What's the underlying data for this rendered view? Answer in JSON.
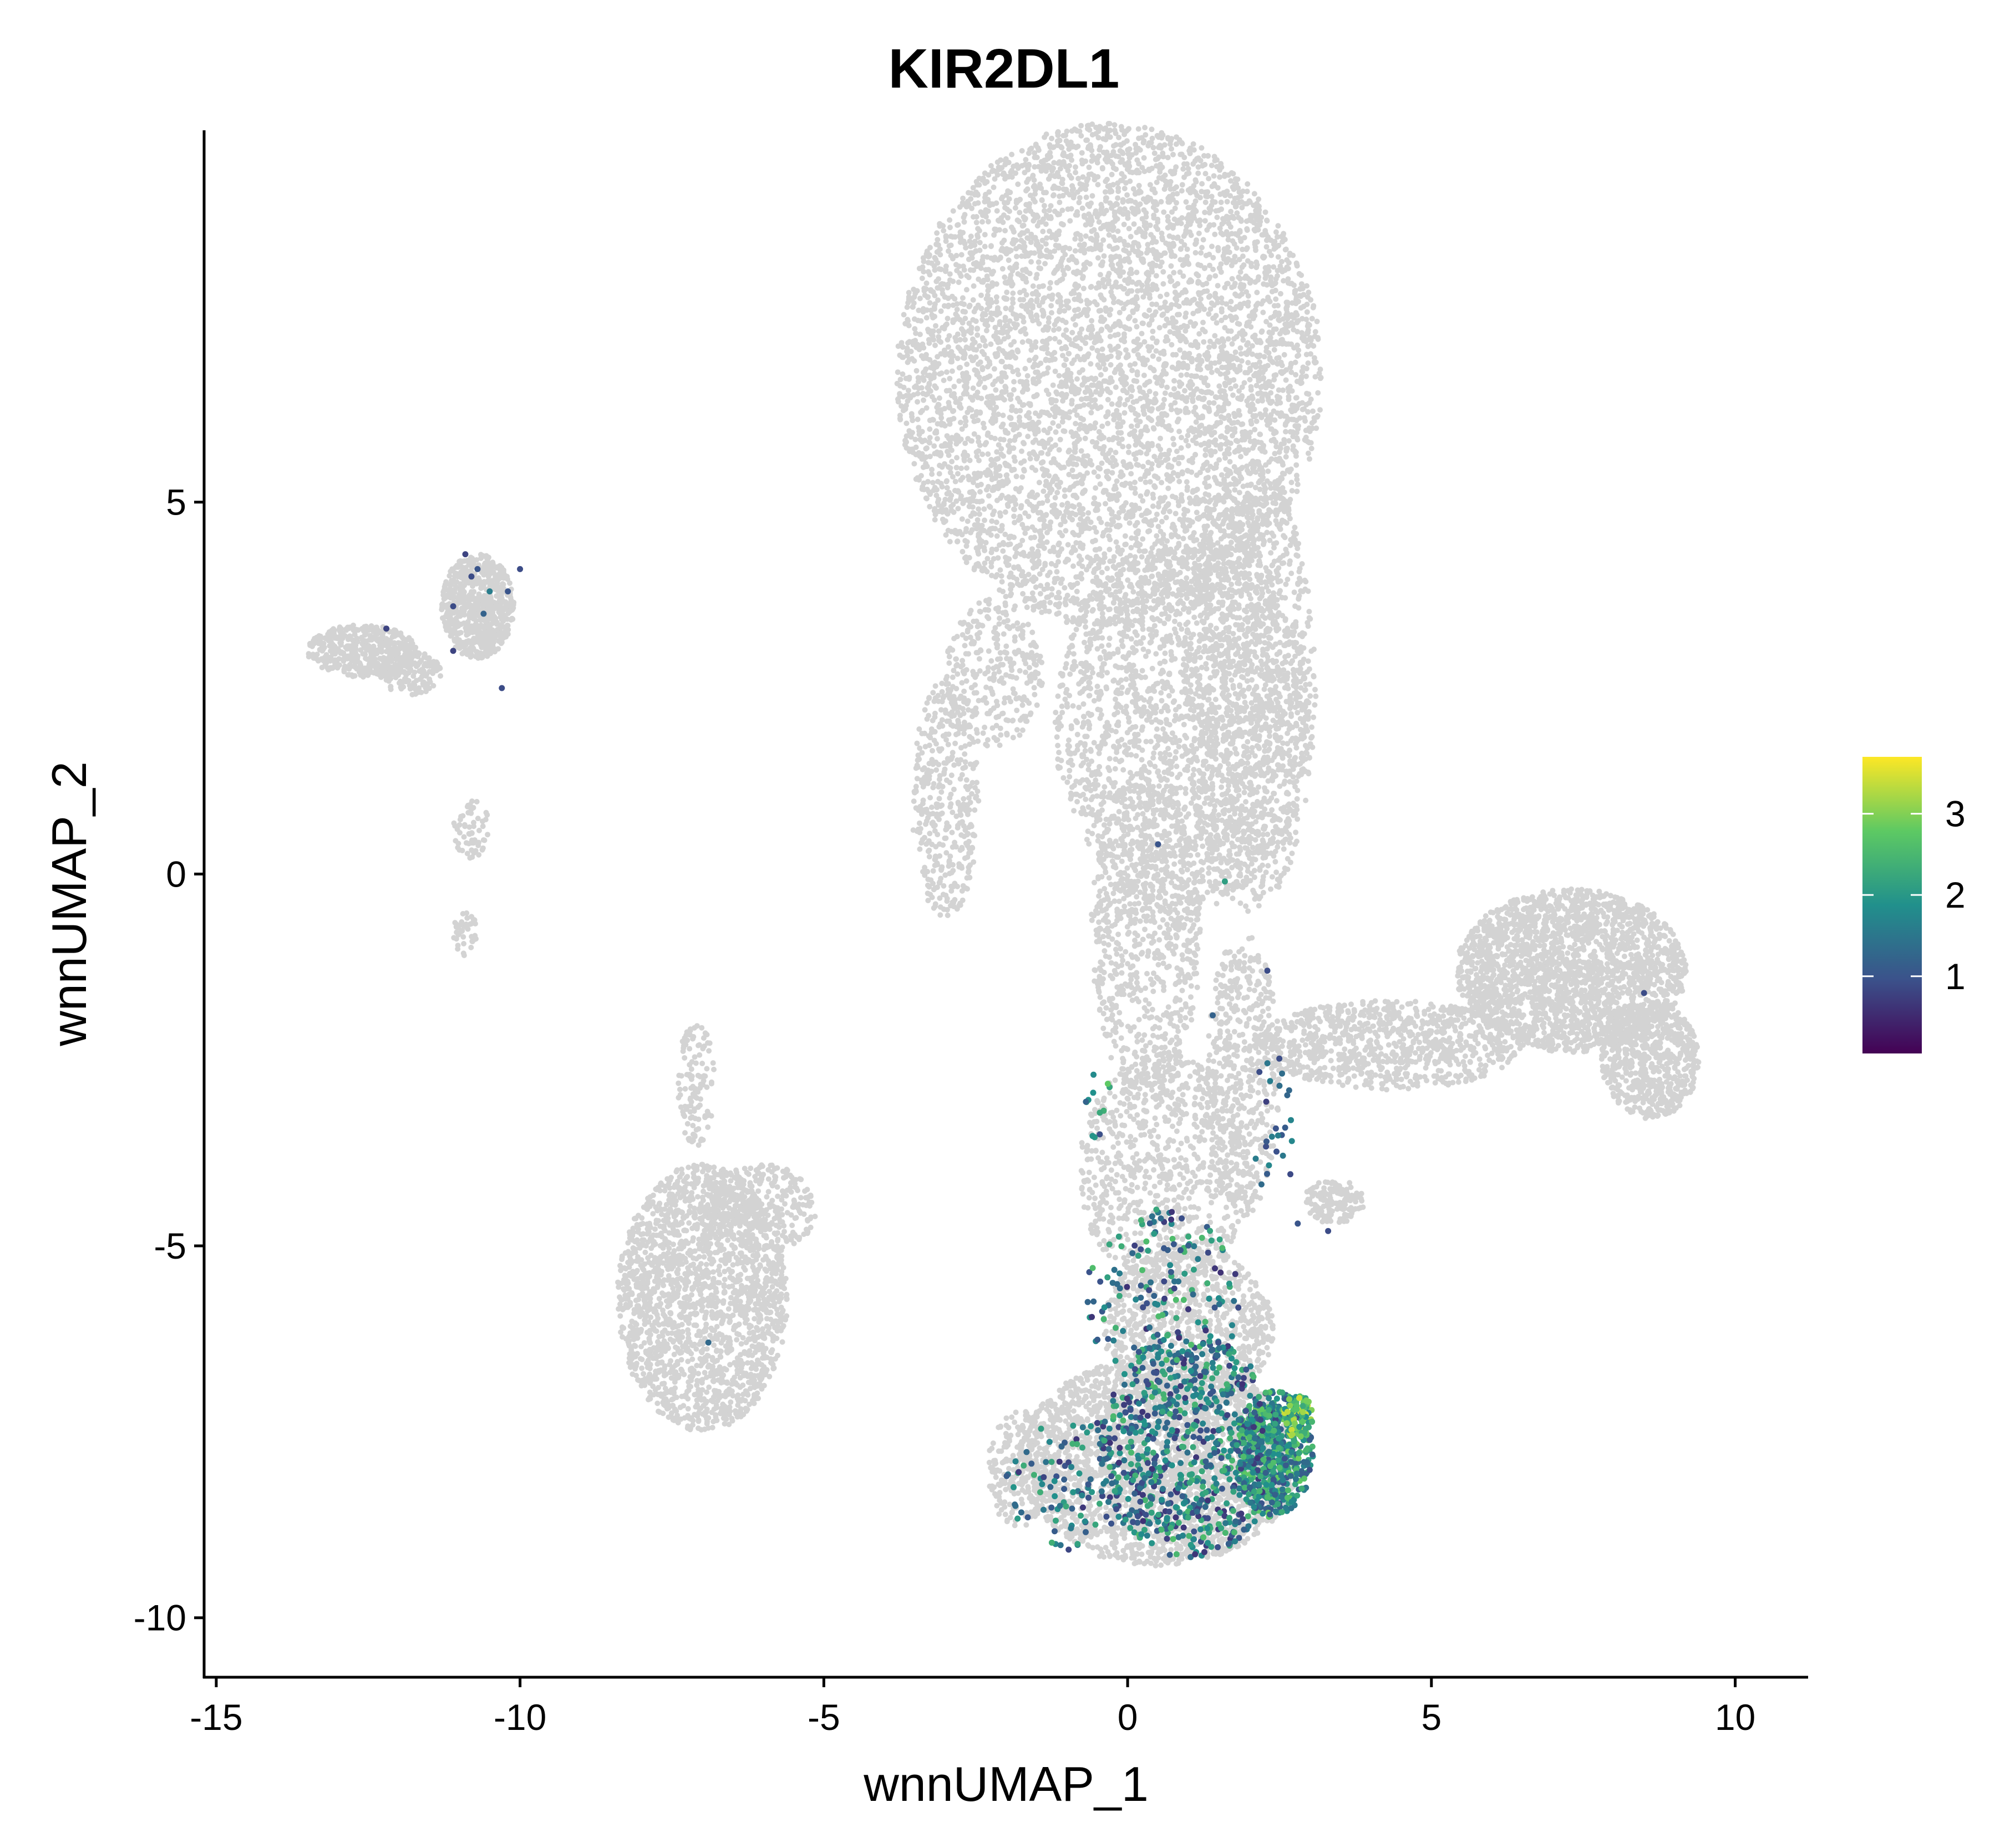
{
  "chart_data": {
    "type": "scatter",
    "title": "KIR2DL1",
    "xlabel": "wnnUMAP_1",
    "ylabel": "wnnUMAP_2",
    "xlim": [
      -15.2,
      11.2
    ],
    "ylim": [
      -10.8,
      10.0
    ],
    "xticks": [
      -15,
      -10,
      -5,
      0,
      5,
      10
    ],
    "yticks": [
      -10,
      -5,
      0,
      5
    ],
    "xtick_labels": [
      "-15",
      "-10",
      "-5",
      "0",
      "5",
      "10"
    ],
    "ytick_labels": [
      "-10",
      "-5",
      "0",
      "5"
    ],
    "grid": false,
    "legend": {
      "type": "colorbar",
      "placement": "right",
      "range": [
        0.05,
        3.7
      ],
      "ticks": [
        1,
        2,
        3
      ],
      "tick_labels": [
        "1",
        "2",
        "3"
      ],
      "colormap": [
        "#440154",
        "#3b528b",
        "#21908c",
        "#5dc963",
        "#fde725"
      ]
    },
    "background_color": "#d3d3d3",
    "background_clusters": [
      {
        "cx": -0.3,
        "cy": 6.7,
        "rx": 3.5,
        "ry": 3.4,
        "n": 5500
      },
      {
        "cx": 0.9,
        "cy": 2.0,
        "rx": 2.1,
        "ry": 2.5,
        "n": 2000
      },
      {
        "cx": 2.0,
        "cy": 2.5,
        "rx": 1.1,
        "ry": 3.0,
        "n": 1200
      },
      {
        "cx": -3.0,
        "cy": 1.0,
        "rx": 0.55,
        "ry": 1.6,
        "n": 400
      },
      {
        "cx": -2.2,
        "cy": 2.7,
        "rx": 0.8,
        "ry": 1.0,
        "n": 300
      },
      {
        "cx": 0.3,
        "cy": -0.8,
        "rx": 0.9,
        "ry": 2.2,
        "n": 800
      },
      {
        "cx": 0.6,
        "cy": -4.0,
        "rx": 1.4,
        "ry": 1.6,
        "n": 800
      },
      {
        "cx": 1.9,
        "cy": -2.7,
        "rx": 0.6,
        "ry": 1.9,
        "n": 500
      },
      {
        "cx": 0.5,
        "cy": -7.9,
        "rx": 2.3,
        "ry": 1.4,
        "n": 2600
      },
      {
        "cx": 1.0,
        "cy": -6.1,
        "rx": 1.4,
        "ry": 1.1,
        "n": 900
      },
      {
        "cx": -1.8,
        "cy": -8.0,
        "rx": 0.5,
        "ry": 0.8,
        "n": 200
      },
      {
        "cx": 7.3,
        "cy": -1.3,
        "rx": 1.9,
        "ry": 1.1,
        "n": 2200
      },
      {
        "cx": 8.6,
        "cy": -2.5,
        "rx": 0.8,
        "ry": 0.8,
        "n": 700
      },
      {
        "cx": 4.3,
        "cy": -2.3,
        "rx": 2.2,
        "ry": 0.6,
        "n": 900
      },
      {
        "cx": 3.4,
        "cy": -4.4,
        "rx": 0.5,
        "ry": 0.3,
        "n": 150
      },
      {
        "cx": -7.0,
        "cy": -5.7,
        "rx": 1.4,
        "ry": 1.8,
        "n": 2000
      },
      {
        "cx": -6.0,
        "cy": -4.5,
        "rx": 0.9,
        "ry": 0.6,
        "n": 300
      },
      {
        "cx": -7.1,
        "cy": -2.8,
        "rx": 0.3,
        "ry": 0.9,
        "n": 120
      },
      {
        "cx": -10.7,
        "cy": 3.6,
        "rx": 0.6,
        "ry": 0.7,
        "n": 700
      },
      {
        "cx": -12.6,
        "cy": 3.0,
        "rx": 0.9,
        "ry": 0.35,
        "n": 450
      },
      {
        "cx": -11.8,
        "cy": 2.7,
        "rx": 0.5,
        "ry": 0.3,
        "n": 150
      },
      {
        "cx": -10.8,
        "cy": 0.6,
        "rx": 0.3,
        "ry": 0.4,
        "n": 60
      },
      {
        "cx": -10.9,
        "cy": -0.8,
        "rx": 0.2,
        "ry": 0.3,
        "n": 40
      }
    ],
    "expressing_points": [
      {
        "x": -12.2,
        "y": 3.3,
        "v": 0.8
      },
      {
        "x": -11.1,
        "y": 3.0,
        "v": 0.8
      },
      {
        "x": -11.1,
        "y": 3.6,
        "v": 0.9
      },
      {
        "x": -10.9,
        "y": 4.3,
        "v": 0.8
      },
      {
        "x": -10.8,
        "y": 4.0,
        "v": 0.9
      },
      {
        "x": -10.7,
        "y": 4.1,
        "v": 1.0
      },
      {
        "x": -10.6,
        "y": 3.5,
        "v": 1.2
      },
      {
        "x": -10.5,
        "y": 3.8,
        "v": 1.6
      },
      {
        "x": -10.3,
        "y": 2.5,
        "v": 0.9
      },
      {
        "x": -10.2,
        "y": 3.8,
        "v": 1.0
      },
      {
        "x": -10.0,
        "y": 4.1,
        "v": 0.9
      },
      {
        "x": -6.9,
        "y": -6.3,
        "v": 1.3
      },
      {
        "x": 0.5,
        "y": 0.4,
        "v": 1.0
      },
      {
        "x": 1.6,
        "y": -0.1,
        "v": 2.1
      },
      {
        "x": 2.3,
        "y": -1.3,
        "v": 0.9
      },
      {
        "x": 1.4,
        "y": -1.9,
        "v": 1.2
      },
      {
        "x": 8.5,
        "y": -1.6,
        "v": 0.9
      },
      {
        "x": 3.3,
        "y": -4.8,
        "v": 0.9
      },
      {
        "x": 2.8,
        "y": -4.7,
        "v": 1.0
      }
    ],
    "expressing_clusters": [
      {
        "cx": 2.4,
        "cy": -7.8,
        "rx": 0.65,
        "ry": 0.85,
        "n": 520,
        "vmin": 0.9,
        "vmax": 2.9
      },
      {
        "cx": 2.8,
        "cy": -7.3,
        "rx": 0.25,
        "ry": 0.3,
        "n": 90,
        "vmin": 1.8,
        "vmax": 3.6
      },
      {
        "cx": 1.0,
        "cy": -7.7,
        "rx": 1.5,
        "ry": 1.5,
        "n": 700,
        "vmin": 0.6,
        "vmax": 2.6
      },
      {
        "cx": 0.6,
        "cy": -5.7,
        "rx": 1.3,
        "ry": 1.2,
        "n": 160,
        "vmin": 0.6,
        "vmax": 2.6
      },
      {
        "cx": -0.8,
        "cy": -8.2,
        "rx": 1.2,
        "ry": 0.9,
        "n": 120,
        "vmin": 0.6,
        "vmax": 2.4
      },
      {
        "cx": 2.4,
        "cy": -3.4,
        "rx": 0.35,
        "ry": 1.1,
        "n": 25,
        "vmin": 0.7,
        "vmax": 1.8
      },
      {
        "cx": -0.5,
        "cy": -3.1,
        "rx": 0.25,
        "ry": 0.5,
        "n": 12,
        "vmin": 0.8,
        "vmax": 2.8
      }
    ]
  }
}
